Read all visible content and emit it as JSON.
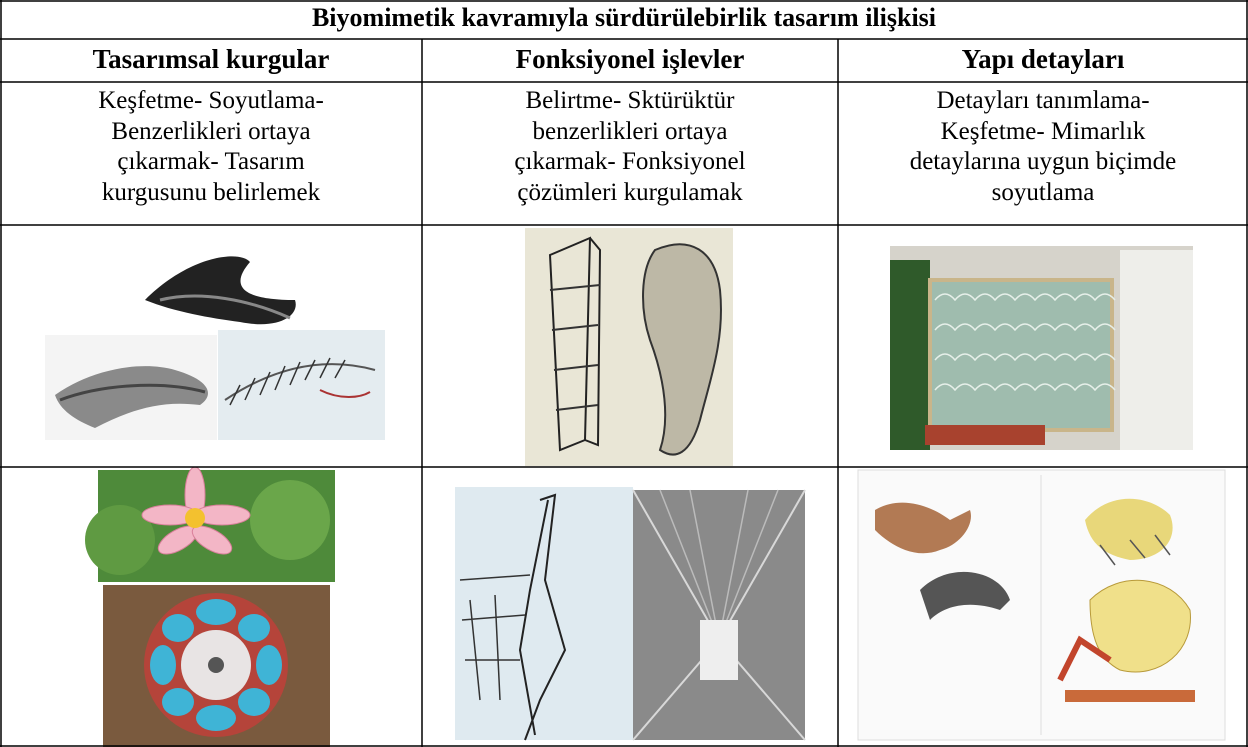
{
  "title": "Biyomimetik kavramıyla sürdürülebirlik tasarım ilişkisi",
  "headers": [
    "Tasarımsal kurgular",
    "Fonksiyonel işlevler",
    "Yapı detayları"
  ],
  "descriptions": [
    [
      "Keşfetme- Soyutlama-",
      "Benzerlikleri ortaya",
      "çıkarmak- Tasarım",
      "kurgusunu belirlemek"
    ],
    [
      "Belirtme- Sktürüktür",
      "benzerlikleri ortaya",
      "çıkarmak- Fonksiyonel",
      "çözümleri kurgulamak"
    ],
    [
      "Detayları tanımlama-",
      "Keşfetme- Mimarlık",
      "detaylarına uygun biçimde",
      "soyutlama"
    ]
  ]
}
